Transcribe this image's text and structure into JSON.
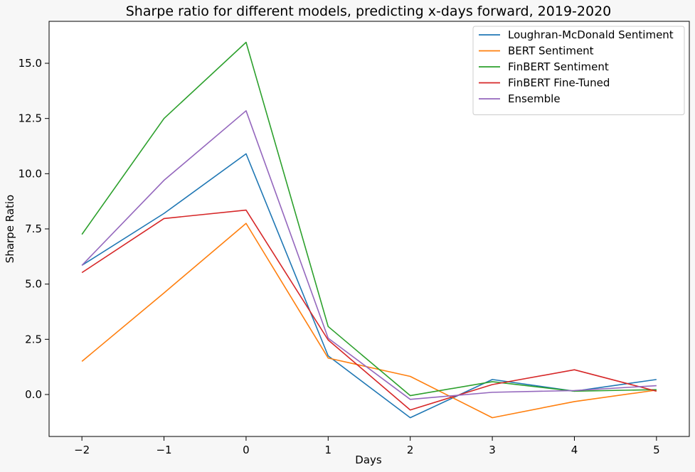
{
  "chart_data": {
    "type": "line",
    "title": "Sharpe ratio for different models, predicting x-days forward, 2019-2020",
    "xlabel": "Days",
    "ylabel": "Sharpe Ratio",
    "x": [
      -2,
      -1,
      0,
      1,
      2,
      3,
      4,
      5
    ],
    "xticks": [
      "−2",
      "−1",
      "0",
      "1",
      "2",
      "3",
      "4",
      "5"
    ],
    "yticks": [
      0.0,
      2.5,
      5.0,
      7.5,
      10.0,
      12.5,
      15.0
    ],
    "ytick_labels": [
      "0.0",
      "2.5",
      "5.0",
      "7.5",
      "10.0",
      "12.5",
      "15.0"
    ],
    "xlim": [
      -2.4,
      5.4
    ],
    "ylim": [
      -1.9,
      16.9
    ],
    "grid": false,
    "legend_position": "top-right",
    "series": [
      {
        "name": "Loughran-McDonald Sentiment",
        "color": "#1f77b4",
        "values": [
          5.85,
          8.2,
          10.9,
          1.75,
          -1.05,
          0.68,
          0.15,
          0.68
        ]
      },
      {
        "name": "BERT Sentiment",
        "color": "#ff7f0e",
        "values": [
          1.5,
          4.6,
          7.75,
          1.65,
          0.82,
          -1.05,
          -0.32,
          0.2
        ]
      },
      {
        "name": "FinBERT Sentiment",
        "color": "#2ca02c",
        "values": [
          7.25,
          12.5,
          15.95,
          3.08,
          -0.05,
          0.58,
          0.15,
          0.22
        ]
      },
      {
        "name": "FinBERT Fine-Tuned",
        "color": "#d62728",
        "values": [
          5.52,
          7.97,
          8.35,
          2.47,
          -0.7,
          0.45,
          1.12,
          0.15
        ]
      },
      {
        "name": "Ensemble",
        "color": "#9467bd",
        "values": [
          5.85,
          9.7,
          12.85,
          2.55,
          -0.22,
          0.1,
          0.18,
          0.4
        ]
      }
    ]
  }
}
